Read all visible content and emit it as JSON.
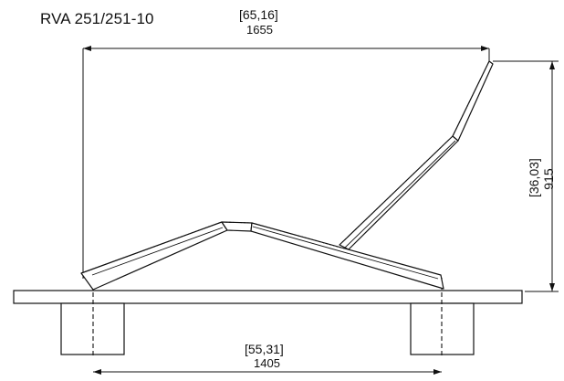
{
  "title": "RVA 251/251-10",
  "dimensions": {
    "top": {
      "inches": "[65,16]",
      "mm": "1655"
    },
    "right": {
      "inches": "[36,03]",
      "mm": "915"
    },
    "bottom": {
      "inches": "[55,31]",
      "mm": "1405"
    }
  },
  "colors": {
    "line": "#111111",
    "background": "#ffffff"
  }
}
